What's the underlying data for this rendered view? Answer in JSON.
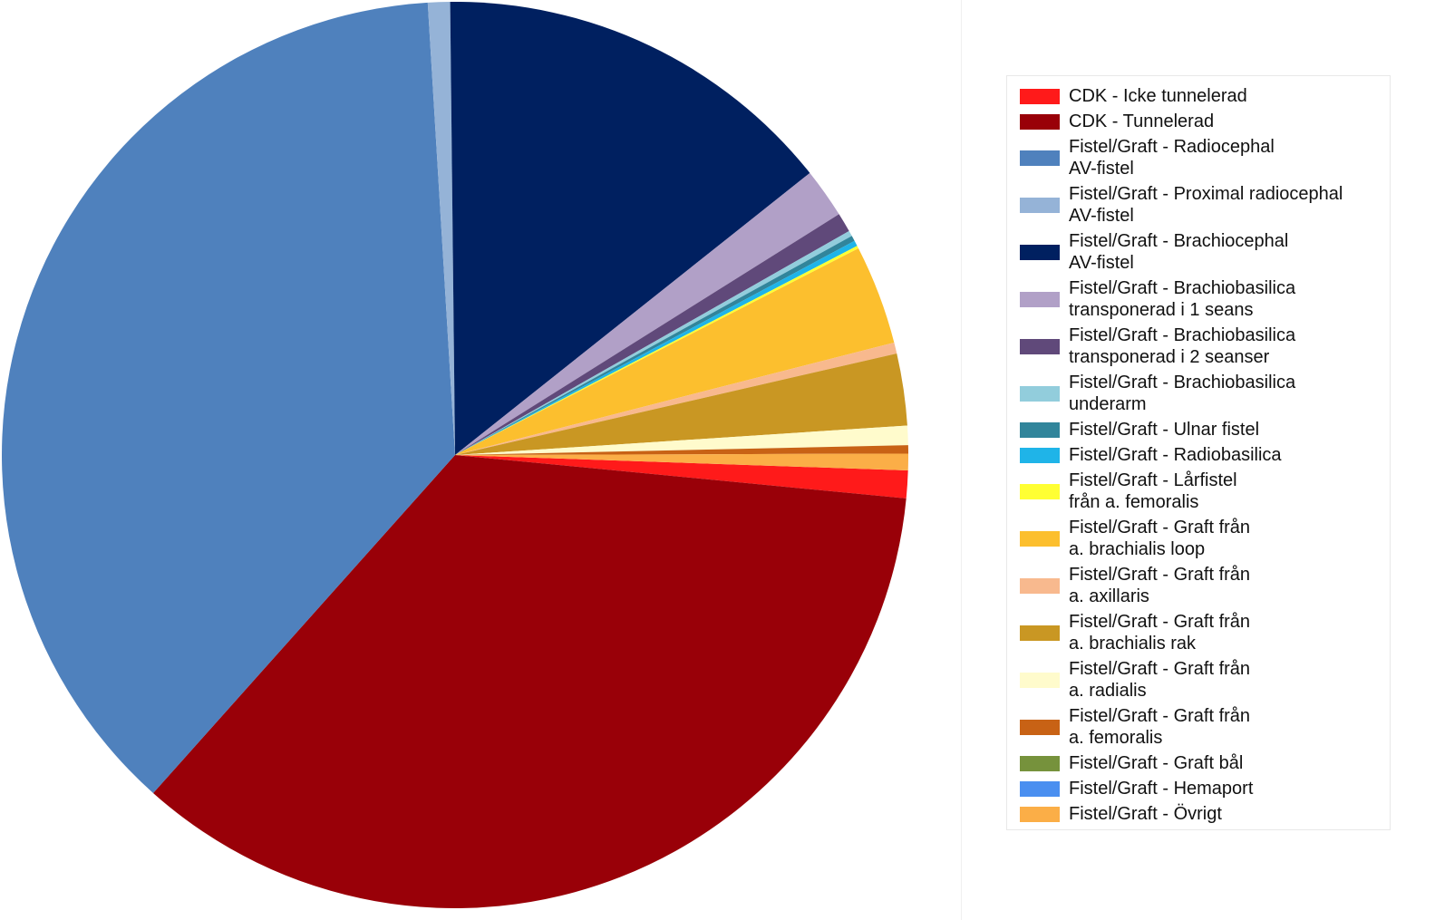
{
  "chart_data": {
    "type": "pie",
    "title": "",
    "slices": [
      {
        "label": "CDK - Icke tunnelerad",
        "value": 1.0,
        "color": "#ff1a1a"
      },
      {
        "label": "CDK - Tunnelerad",
        "value": 35.6,
        "color": "#990008"
      },
      {
        "label": "Fistel/Graft - Radiocephal\nAV-fistel",
        "value": 38.0,
        "color": "#4f81bd"
      },
      {
        "label": "Fistel/Graft - Proximal radiocephal\nAV-fistel",
        "value": 0.8,
        "color": "#95b3d7"
      },
      {
        "label": "Fistel/Graft - Brachiocephal\nAV-fistel",
        "value": 14.7,
        "color": "#002060"
      },
      {
        "label": "Fistel/Graft - Brachiobasilica\ntransponerad i 1 seans",
        "value": 1.8,
        "color": "#b1a0c7"
      },
      {
        "label": "Fistel/Graft - Brachiobasilica\ntransponerad i 2 seanser",
        "value": 0.7,
        "color": "#60497a"
      },
      {
        "label": "Fistel/Graft - Brachiobasilica\nunderarm",
        "value": 0.2,
        "color": "#92cddc"
      },
      {
        "label": "Fistel/Graft - Ulnar fistel",
        "value": 0.2,
        "color": "#31859b"
      },
      {
        "label": "Fistel/Graft - Radiobasilica",
        "value": 0.2,
        "color": "#1fb4e8"
      },
      {
        "label": "Fistel/Graft - Lårfistel\nfrån a. femoralis",
        "value": 0.1,
        "color": "#ffff33"
      },
      {
        "label": "Fistel/Graft - Graft från\na. brachialis loop",
        "value": 3.6,
        "color": "#fcbf2e"
      },
      {
        "label": "Fistel/Graft - Graft från\na. axillaris",
        "value": 0.4,
        "color": "#f8b98e"
      },
      {
        "label": "Fistel/Graft - Graft från\na. brachialis rak",
        "value": 2.6,
        "color": "#c99723"
      },
      {
        "label": "Fistel/Graft - Graft från\na. radialis",
        "value": 0.7,
        "color": "#fffbcc"
      },
      {
        "label": "Fistel/Graft - Graft från\na. femoralis",
        "value": 0.3,
        "color": "#c86215"
      },
      {
        "label": "Fistel/Graft - Graft bål",
        "value": 0.0,
        "color": "#76923c"
      },
      {
        "label": "Fistel/Graft - Hemaport",
        "value": 0.0,
        "color": "#4a8ff0"
      },
      {
        "label": "Fistel/Graft - Övrigt",
        "value": 0.6,
        "color": "#fbae47"
      }
    ],
    "legend_position": "right"
  }
}
